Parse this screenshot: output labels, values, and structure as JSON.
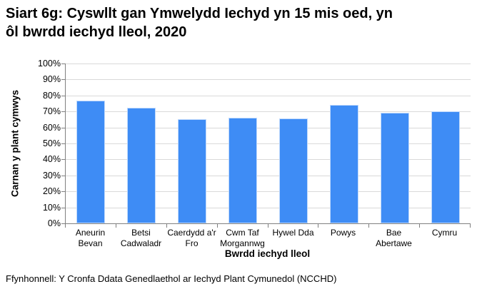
{
  "title_lines": [
    "Siart 6g: Cyswllt gan Ymwelydd Iechyd yn 15 mis oed, yn",
    "ôl bwrdd iechyd lleol, 2020"
  ],
  "source": "Ffynhonnell: Y Cronfa Ddata Genedlaethol ar Iechyd Plant Cymunedol (NCCHD)",
  "chart_data": {
    "type": "bar",
    "title": "Siart 6g: Cyswllt gan Ymwelydd Iechyd yn 15 mis oed, yn ôl bwrdd iechyd lleol, 2020",
    "categories": [
      "Aneurin Bevan",
      "Betsi Cadwaladr",
      "Caerdydd a'r Fro",
      "Cwm Taf Morgannwg",
      "Hywel Dda",
      "Powys",
      "Bae Abertawe",
      "Cymru"
    ],
    "values": [
      77,
      72.5,
      65,
      66,
      65.5,
      74,
      69,
      70
    ],
    "xlabel": "Bwrdd iechyd lleol",
    "ylabel": "Carnan y plant cymwys",
    "ylim": [
      0,
      100
    ],
    "y_tick_step": 10,
    "y_tick_format": "percent",
    "grid": true,
    "legend": "none",
    "colors": {
      "bar": "#3E8CF5",
      "bar_border": "#BFD9FC",
      "gridline": "#D9D9D9",
      "axis": "#808080",
      "text": "#000000"
    }
  }
}
